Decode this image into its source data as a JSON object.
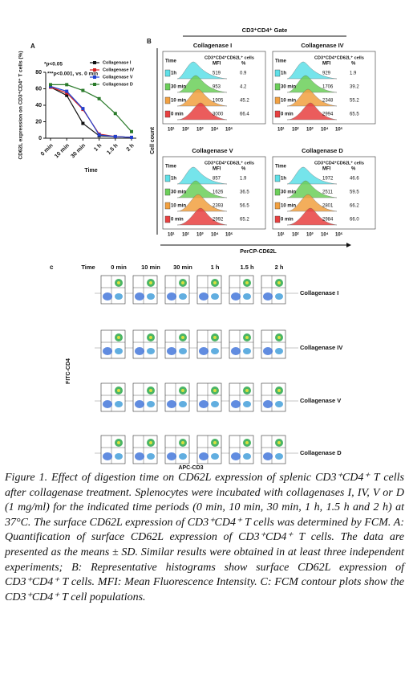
{
  "chart_data": {
    "type": "line",
    "panel_label": "A",
    "y_label": "CD62L expression on CD3⁺CD4⁺ T cells (%)",
    "x_label": "Time",
    "categories": [
      "0 min",
      "10 min",
      "30 min",
      "1 h",
      "1.5 h",
      "2 h"
    ],
    "series": [
      {
        "name": "Collagenase I",
        "color": "#111111",
        "values": [
          62,
          52,
          18,
          3,
          2,
          1
        ]
      },
      {
        "name": "Collagenase IV",
        "color": "#d62020",
        "values": [
          62,
          55,
          35,
          5,
          2,
          1
        ]
      },
      {
        "name": "Collagenase V",
        "color": "#2040d0",
        "values": [
          63,
          57,
          36,
          4,
          2,
          1
        ]
      },
      {
        "name": "Collagenase D",
        "color": "#2a7a2a",
        "values": [
          65,
          65,
          58,
          48,
          30,
          8
        ]
      }
    ],
    "ylim": [
      0,
      80
    ],
    "yticks": [
      0,
      20,
      40,
      60,
      80
    ],
    "legend": "upper right",
    "annotations": [
      "*p<0.05",
      "***p<0.001, vs. 0 min"
    ]
  },
  "histograms": {
    "panel_label": "B",
    "title": "CD3⁺CD4⁺ Gate",
    "y_label": "Cell count",
    "x_label": "PerCP-CD62L",
    "column_headers": [
      "Time",
      "MFI",
      "%"
    ],
    "axis_ticks": [
      "10¹",
      "10²",
      "10³",
      "10⁴",
      "10⁵"
    ],
    "panels": [
      {
        "title": "Collagenase I",
        "subtitle": "CD3⁺CD4⁺CD62L⁺ cells",
        "rows": [
          [
            "1h",
            "519",
            "0.9"
          ],
          [
            "30 min",
            "953",
            "4.2"
          ],
          [
            "10 min",
            "1905",
            "45.2"
          ],
          [
            "0 min",
            "3000",
            "66.4"
          ]
        ]
      },
      {
        "title": "Collagenase IV",
        "subtitle": "CD3⁺CD4⁺CD62L⁺ cells",
        "rows": [
          [
            "1h",
            "929",
            "1.9"
          ],
          [
            "30 min",
            "1706",
            "39.2"
          ],
          [
            "10 min",
            "2348",
            "55.2"
          ],
          [
            "0 min",
            "2994",
            "65.5"
          ]
        ]
      },
      {
        "title": "Collagenase V",
        "subtitle": "CD3⁺CD4⁺CD62L⁺ cells",
        "rows": [
          [
            "1h",
            "857",
            "1.9"
          ],
          [
            "30 min",
            "1626",
            "36.5"
          ],
          [
            "10 min",
            "2393",
            "56.5"
          ],
          [
            "0 min",
            "2992",
            "65.2"
          ]
        ]
      },
      {
        "title": "Collagenase D",
        "subtitle": "CD3⁺CD4⁺CD62L⁺ cells",
        "rows": [
          [
            "1h",
            "1972",
            "46.6"
          ],
          [
            "30 min",
            "2511",
            "59.5"
          ],
          [
            "10 min",
            "2801",
            "66.2"
          ],
          [
            "0 min",
            "2984",
            "66.0"
          ]
        ]
      }
    ]
  },
  "contours": {
    "panel_label": "c",
    "column_title": "Time",
    "columns": [
      "0 min",
      "10 min",
      "30 min",
      "1 h",
      "1.5 h",
      "2 h"
    ],
    "rows": [
      "Collagenase I",
      "Collagenase IV",
      "Collagenase V",
      "Collagenase D"
    ],
    "y_label": "FITC-CD4",
    "x_label": "APC-CD3"
  },
  "caption": {
    "label": "Figure 1.",
    "text": "Effect of digestion time on CD62L expression of splenic CD3⁺CD4⁺ T cells after collagenase treatment. Splenocytes were incubated with collagenases I, IV, V or D (1 mg/ml) for the indicated time periods (0 min, 10 min, 30 min, 1 h, 1.5 h and 2 h) at 37°C. The surface CD62L expression of CD3⁺CD4⁺ T cells was determined by FCM. A: Quantification of surface CD62L expression of CD3⁺CD4⁺ T cells. The data are presented as the means ± SD. Similar results were obtained in at least three independent experiments; B: Representative histograms show surface CD62L expression of CD3⁺CD4⁺ T cells. MFI: Mean Fluorescence Intensity. C: FCM contour plots show the CD3⁺CD4⁺ T cell populations."
  }
}
